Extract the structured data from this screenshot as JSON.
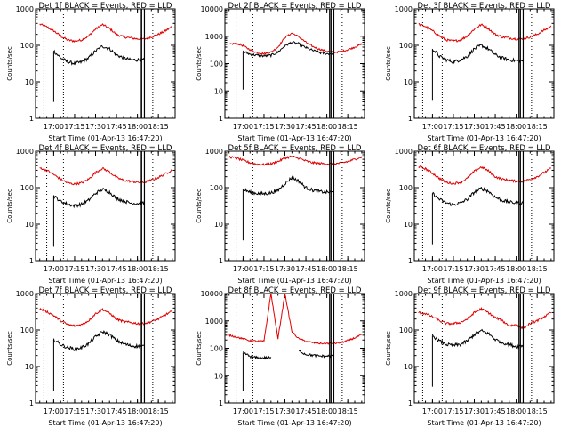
{
  "colors": {
    "events": "#000000",
    "lld": "#e00000",
    "axis": "#000000",
    "background": "#ffffff"
  },
  "panels": [
    {
      "title": "Det 1f BLACK = Events, RED = LLD",
      "ylabel": "Counts/sec",
      "xlabel": "Start Time (01-Apr-13 16:47:20)",
      "yticks": [
        "1",
        "10",
        "100",
        "1000"
      ],
      "xticks": [
        "17:00",
        "17:15",
        "17:30",
        "17:45",
        "18:00",
        "18:15"
      ]
    },
    {
      "title": "Det 2f BLACK = Events, RED = LLD",
      "ylabel": "Counts/sec",
      "xlabel": "Start Time (01-Apr-13 16:47:20)",
      "yticks": [
        "1",
        "10",
        "100",
        "1000",
        "10000"
      ],
      "xticks": [
        "17:00",
        "17:15",
        "17:30",
        "17:45",
        "18:00",
        "18:15"
      ]
    },
    {
      "title": "Det 3f BLACK = Events, RED = LLD",
      "ylabel": "Counts/sec",
      "xlabel": "Start Time (01-Apr-13 16:47:20)",
      "yticks": [
        "1",
        "10",
        "100",
        "1000"
      ],
      "xticks": [
        "17:00",
        "17:15",
        "17:30",
        "17:45",
        "18:00",
        "18:15"
      ]
    },
    {
      "title": "Det 4f BLACK = Events, RED = LLD",
      "ylabel": "Counts/sec",
      "xlabel": "Start Time (01-Apr-13 16:47:20)",
      "yticks": [
        "1",
        "10",
        "100",
        "1000"
      ],
      "xticks": [
        "17:00",
        "17:15",
        "17:30",
        "17:45",
        "18:00",
        "18:15"
      ]
    },
    {
      "title": "Det 5f BLACK = Events, RED = LLD",
      "ylabel": "Counts/sec",
      "xlabel": "Start Time (01-Apr-13 16:47:20)",
      "yticks": [
        "1",
        "10",
        "100",
        "1000"
      ],
      "xticks": [
        "17:00",
        "17:15",
        "17:30",
        "17:45",
        "18:00",
        "18:15"
      ]
    },
    {
      "title": "Det 6f BLACK = Events, RED = LLD",
      "ylabel": "Counts/sec",
      "xlabel": "Start Time (01-Apr-13 16:47:20)",
      "yticks": [
        "1",
        "10",
        "100",
        "1000"
      ],
      "xticks": [
        "17:00",
        "17:15",
        "17:30",
        "17:45",
        "18:00",
        "18:15"
      ]
    },
    {
      "title": "Det 7f BLACK = Events, RED = LLD",
      "ylabel": "Counts/sec",
      "xlabel": "Start Time (01-Apr-13 16:47:20)",
      "yticks": [
        "1",
        "10",
        "100",
        "1000"
      ],
      "xticks": [
        "17:00",
        "17:15",
        "17:30",
        "17:45",
        "18:00",
        "18:15"
      ]
    },
    {
      "title": "Det 8f BLACK = Events, RED = LLD",
      "ylabel": "Counts/sec",
      "xlabel": "Start Time (01-Apr-13 16:47:20)",
      "yticks": [
        "1",
        "10",
        "100",
        "1000",
        "10000"
      ],
      "xticks": [
        "17:00",
        "17:15",
        "17:30",
        "17:45",
        "18:00",
        "18:15"
      ]
    },
    {
      "title": "Det 9f BLACK = Events, RED = LLD",
      "ylabel": "Counts/sec",
      "xlabel": "Start Time (01-Apr-13 16:47:20)",
      "yticks": [
        "1",
        "10",
        "100",
        "1000"
      ],
      "xticks": [
        "17:00",
        "17:15",
        "17:30",
        "17:45",
        "18:00",
        "18:15"
      ]
    }
  ],
  "chart_data": [
    {
      "type": "line",
      "title": "Det 1f BLACK = Events, RED = LLD",
      "xlabel": "Start Time (01-Apr-13 16:47:20)",
      "ylabel": "Counts/sec",
      "ylim": [
        1,
        1000
      ],
      "yscale": "log",
      "xlim": [
        "16:47",
        "18:27"
      ],
      "x": [
        "16:50",
        "16:55",
        "17:00",
        "17:05",
        "17:10",
        "17:15",
        "17:20",
        "17:25",
        "17:30",
        "17:35",
        "17:40",
        "17:45",
        "17:50",
        "17:55",
        "18:00",
        "18:05",
        "18:10",
        "18:15",
        "18:20",
        "18:25"
      ],
      "series": [
        {
          "name": "LLD",
          "color": "#e00000",
          "values": [
            380,
            320,
            250,
            180,
            140,
            130,
            140,
            180,
            280,
            370,
            290,
            200,
            170,
            160,
            150,
            150,
            170,
            200,
            250,
            330
          ]
        },
        {
          "name": "Events",
          "color": "#000000",
          "values": [
            null,
            null,
            70,
            45,
            35,
            32,
            35,
            45,
            70,
            95,
            80,
            55,
            45,
            40,
            40,
            40,
            null,
            null,
            null,
            null
          ]
        }
      ],
      "markers": [
        "16:53",
        "17:07",
        "18:02",
        "18:03",
        "18:05",
        "18:11"
      ]
    },
    {
      "type": "line",
      "title": "Det 2f BLACK = Events, RED = LLD",
      "xlabel": "Start Time (01-Apr-13 16:47:20)",
      "ylabel": "Counts/sec",
      "ylim": [
        1,
        10000
      ],
      "yscale": "log",
      "xlim": [
        "16:47",
        "18:27"
      ],
      "x": [
        "16:50",
        "16:55",
        "17:00",
        "17:05",
        "17:10",
        "17:15",
        "17:20",
        "17:25",
        "17:30",
        "17:35",
        "17:40",
        "17:45",
        "17:50",
        "17:55",
        "18:00",
        "18:05",
        "18:10",
        "18:15",
        "18:20",
        "18:25"
      ],
      "series": [
        {
          "name": "LLD",
          "color": "#e00000",
          "values": [
            500,
            550,
            450,
            320,
            250,
            230,
            260,
            400,
            900,
            1300,
            950,
            600,
            420,
            330,
            280,
            260,
            270,
            320,
            400,
            520
          ]
        },
        {
          "name": "Events",
          "color": "#000000",
          "values": [
            null,
            null,
            280,
            220,
            200,
            190,
            200,
            260,
            450,
            600,
            520,
            380,
            300,
            250,
            230,
            230,
            null,
            null,
            null,
            null
          ]
        }
      ],
      "markers": [
        "16:55",
        "17:07",
        "18:02",
        "18:03",
        "18:05",
        "18:11"
      ]
    },
    {
      "type": "line",
      "title": "Det 3f BLACK = Events, RED = LLD",
      "xlabel": "Start Time (01-Apr-13 16:47:20)",
      "ylabel": "Counts/sec",
      "ylim": [
        1,
        1000
      ],
      "yscale": "log",
      "xlim": [
        "16:47",
        "18:27"
      ],
      "x": [
        "16:50",
        "16:55",
        "17:00",
        "17:05",
        "17:10",
        "17:15",
        "17:20",
        "17:25",
        "17:30",
        "17:35",
        "17:40",
        "17:45",
        "17:50",
        "17:55",
        "18:00",
        "18:05",
        "18:10",
        "18:15",
        "18:20",
        "18:25"
      ],
      "series": [
        {
          "name": "LLD",
          "color": "#e00000",
          "values": [
            380,
            330,
            250,
            180,
            140,
            130,
            140,
            180,
            280,
            370,
            290,
            200,
            170,
            160,
            150,
            150,
            170,
            200,
            260,
            330
          ]
        },
        {
          "name": "Events",
          "color": "#000000",
          "values": [
            null,
            null,
            80,
            50,
            40,
            35,
            40,
            50,
            80,
            100,
            80,
            55,
            45,
            40,
            38,
            38,
            null,
            null,
            null,
            null
          ]
        }
      ],
      "markers": [
        "16:53",
        "17:07",
        "18:02",
        "18:03",
        "18:05",
        "18:11"
      ]
    },
    {
      "type": "line",
      "title": "Det 4f BLACK = Events, RED = LLD",
      "xlabel": "Start Time (01-Apr-13 16:47:20)",
      "ylabel": "Counts/sec",
      "ylim": [
        1,
        1000
      ],
      "yscale": "log",
      "xlim": [
        "16:47",
        "18:27"
      ],
      "x": [
        "16:50",
        "16:55",
        "17:00",
        "17:05",
        "17:10",
        "17:15",
        "17:20",
        "17:25",
        "17:30",
        "17:35",
        "17:40",
        "17:45",
        "17:50",
        "17:55",
        "18:00",
        "18:05",
        "18:10",
        "18:15",
        "18:20",
        "18:25"
      ],
      "series": [
        {
          "name": "LLD",
          "color": "#e00000",
          "values": [
            350,
            300,
            230,
            170,
            135,
            125,
            135,
            170,
            260,
            340,
            270,
            190,
            160,
            150,
            140,
            140,
            160,
            190,
            240,
            310
          ]
        },
        {
          "name": "Events",
          "color": "#000000",
          "values": [
            null,
            null,
            60,
            42,
            35,
            32,
            35,
            45,
            70,
            90,
            75,
            52,
            43,
            38,
            37,
            37,
            null,
            null,
            null,
            null
          ]
        }
      ],
      "markers": [
        "16:55",
        "17:07",
        "18:02",
        "18:03",
        "18:05",
        "18:11"
      ]
    },
    {
      "type": "line",
      "title": "Det 5f BLACK = Events, RED = LLD",
      "xlabel": "Start Time (01-Apr-13 16:47:20)",
      "ylabel": "Counts/sec",
      "ylim": [
        1,
        1000
      ],
      "yscale": "log",
      "xlim": [
        "16:47",
        "18:27"
      ],
      "x": [
        "16:50",
        "16:55",
        "17:00",
        "17:05",
        "17:10",
        "17:15",
        "17:20",
        "17:25",
        "17:30",
        "17:35",
        "17:40",
        "17:45",
        "17:50",
        "17:55",
        "18:00",
        "18:05",
        "18:10",
        "18:15",
        "18:20",
        "18:25"
      ],
      "series": [
        {
          "name": "LLD",
          "color": "#e00000",
          "values": [
            700,
            650,
            560,
            480,
            440,
            430,
            450,
            520,
            650,
            720,
            640,
            540,
            480,
            460,
            450,
            450,
            470,
            520,
            600,
            700
          ]
        },
        {
          "name": "Events",
          "color": "#000000",
          "values": [
            null,
            null,
            90,
            75,
            70,
            68,
            72,
            85,
            130,
            190,
            150,
            100,
            85,
            78,
            75,
            75,
            null,
            null,
            null,
            null
          ]
        }
      ],
      "markers": [
        "16:55",
        "17:07",
        "18:02",
        "18:03",
        "18:05",
        "18:11"
      ]
    },
    {
      "type": "line",
      "title": "Det 6f BLACK = Events, RED = LLD",
      "xlabel": "Start Time (01-Apr-13 16:47:20)",
      "ylabel": "Counts/sec",
      "ylim": [
        1,
        1000
      ],
      "yscale": "log",
      "xlim": [
        "16:47",
        "18:27"
      ],
      "x": [
        "16:50",
        "16:55",
        "17:00",
        "17:05",
        "17:10",
        "17:15",
        "17:20",
        "17:25",
        "17:30",
        "17:35",
        "17:40",
        "17:45",
        "17:50",
        "17:55",
        "18:00",
        "18:05",
        "18:10",
        "18:15",
        "18:20",
        "18:25"
      ],
      "series": [
        {
          "name": "LLD",
          "color": "#e00000",
          "values": [
            380,
            330,
            250,
            180,
            140,
            130,
            140,
            180,
            280,
            370,
            290,
            200,
            170,
            160,
            150,
            150,
            170,
            200,
            260,
            340
          ]
        },
        {
          "name": "Events",
          "color": "#000000",
          "values": [
            null,
            null,
            70,
            48,
            38,
            34,
            38,
            48,
            75,
            95,
            80,
            55,
            45,
            40,
            38,
            38,
            null,
            null,
            null,
            null
          ]
        }
      ],
      "markers": [
        "16:53",
        "17:07",
        "18:02",
        "18:03",
        "18:05",
        "18:11"
      ]
    },
    {
      "type": "line",
      "title": "Det 7f BLACK = Events, RED = LLD",
      "xlabel": "Start Time (01-Apr-13 16:47:20)",
      "ylabel": "Counts/sec",
      "ylim": [
        1,
        1000
      ],
      "yscale": "log",
      "xlim": [
        "16:47",
        "18:27"
      ],
      "x": [
        "16:50",
        "16:55",
        "17:00",
        "17:05",
        "17:10",
        "17:15",
        "17:20",
        "17:25",
        "17:30",
        "17:35",
        "17:40",
        "17:45",
        "17:50",
        "17:55",
        "18:00",
        "18:05",
        "18:10",
        "18:15",
        "18:20",
        "18:25"
      ],
      "series": [
        {
          "name": "LLD",
          "color": "#e00000",
          "values": [
            380,
            320,
            250,
            180,
            140,
            130,
            140,
            180,
            280,
            370,
            290,
            200,
            170,
            160,
            150,
            150,
            170,
            200,
            260,
            330
          ]
        },
        {
          "name": "Events",
          "color": "#000000",
          "values": [
            null,
            null,
            55,
            40,
            33,
            30,
            33,
            42,
            65,
            90,
            75,
            52,
            42,
            37,
            36,
            36,
            null,
            null,
            null,
            null
          ]
        }
      ],
      "markers": [
        "16:53",
        "17:07",
        "18:02",
        "18:03",
        "18:05",
        "18:11"
      ]
    },
    {
      "type": "line",
      "title": "Det 8f BLACK = Events, RED = LLD",
      "xlabel": "Start Time (01-Apr-13 16:47:20)",
      "ylabel": "Counts/sec",
      "ylim": [
        1,
        10000
      ],
      "yscale": "log",
      "xlim": [
        "16:47",
        "18:27"
      ],
      "x": [
        "16:50",
        "16:55",
        "17:00",
        "17:05",
        "17:10",
        "17:15",
        "17:20",
        "17:25",
        "17:30",
        "17:35",
        "17:40",
        "17:45",
        "17:50",
        "17:55",
        "18:00",
        "18:05",
        "18:10",
        "18:15",
        "18:20",
        "18:25"
      ],
      "series": [
        {
          "name": "LLD",
          "color": "#e00000",
          "values": [
            300,
            260,
            220,
            190,
            180,
            180,
            10000,
            220,
            10000,
            400,
            220,
            180,
            160,
            150,
            150,
            150,
            160,
            190,
            240,
            310
          ]
        },
        {
          "name": "Events",
          "color": "#000000",
          "values": [
            null,
            null,
            70,
            50,
            45,
            45,
            45,
            null,
            220,
            null,
            80,
            60,
            55,
            52,
            52,
            52,
            null,
            null,
            null,
            null
          ]
        }
      ],
      "markers": [
        "16:55",
        "17:07",
        "18:02",
        "18:03",
        "18:05",
        "18:11"
      ]
    },
    {
      "type": "line",
      "title": "Det 9f BLACK = Events, RED = LLD",
      "xlabel": "Start Time (01-Apr-13 16:47:20)",
      "ylabel": "Counts/sec",
      "ylim": [
        1,
        1000
      ],
      "yscale": "log",
      "xlim": [
        "16:47",
        "18:27"
      ],
      "x": [
        "16:50",
        "16:55",
        "17:00",
        "17:05",
        "17:10",
        "17:15",
        "17:20",
        "17:25",
        "17:30",
        "17:35",
        "17:40",
        "17:45",
        "17:50",
        "17:55",
        "18:00",
        "18:05",
        "18:10",
        "18:15",
        "18:20",
        "18:25"
      ],
      "series": [
        {
          "name": "LLD",
          "color": "#e00000",
          "values": [
            300,
            280,
            230,
            180,
            150,
            150,
            160,
            200,
            300,
            380,
            300,
            220,
            180,
            130,
            140,
            110,
            150,
            180,
            230,
            300
          ]
        },
        {
          "name": "Events",
          "color": "#000000",
          "values": [
            null,
            null,
            70,
            50,
            40,
            38,
            40,
            50,
            75,
            95,
            80,
            55,
            45,
            40,
            35,
            38,
            null,
            null,
            null,
            null
          ]
        }
      ],
      "markers": [
        "16:53",
        "17:07",
        "18:02",
        "18:03",
        "18:05",
        "18:11"
      ]
    }
  ]
}
